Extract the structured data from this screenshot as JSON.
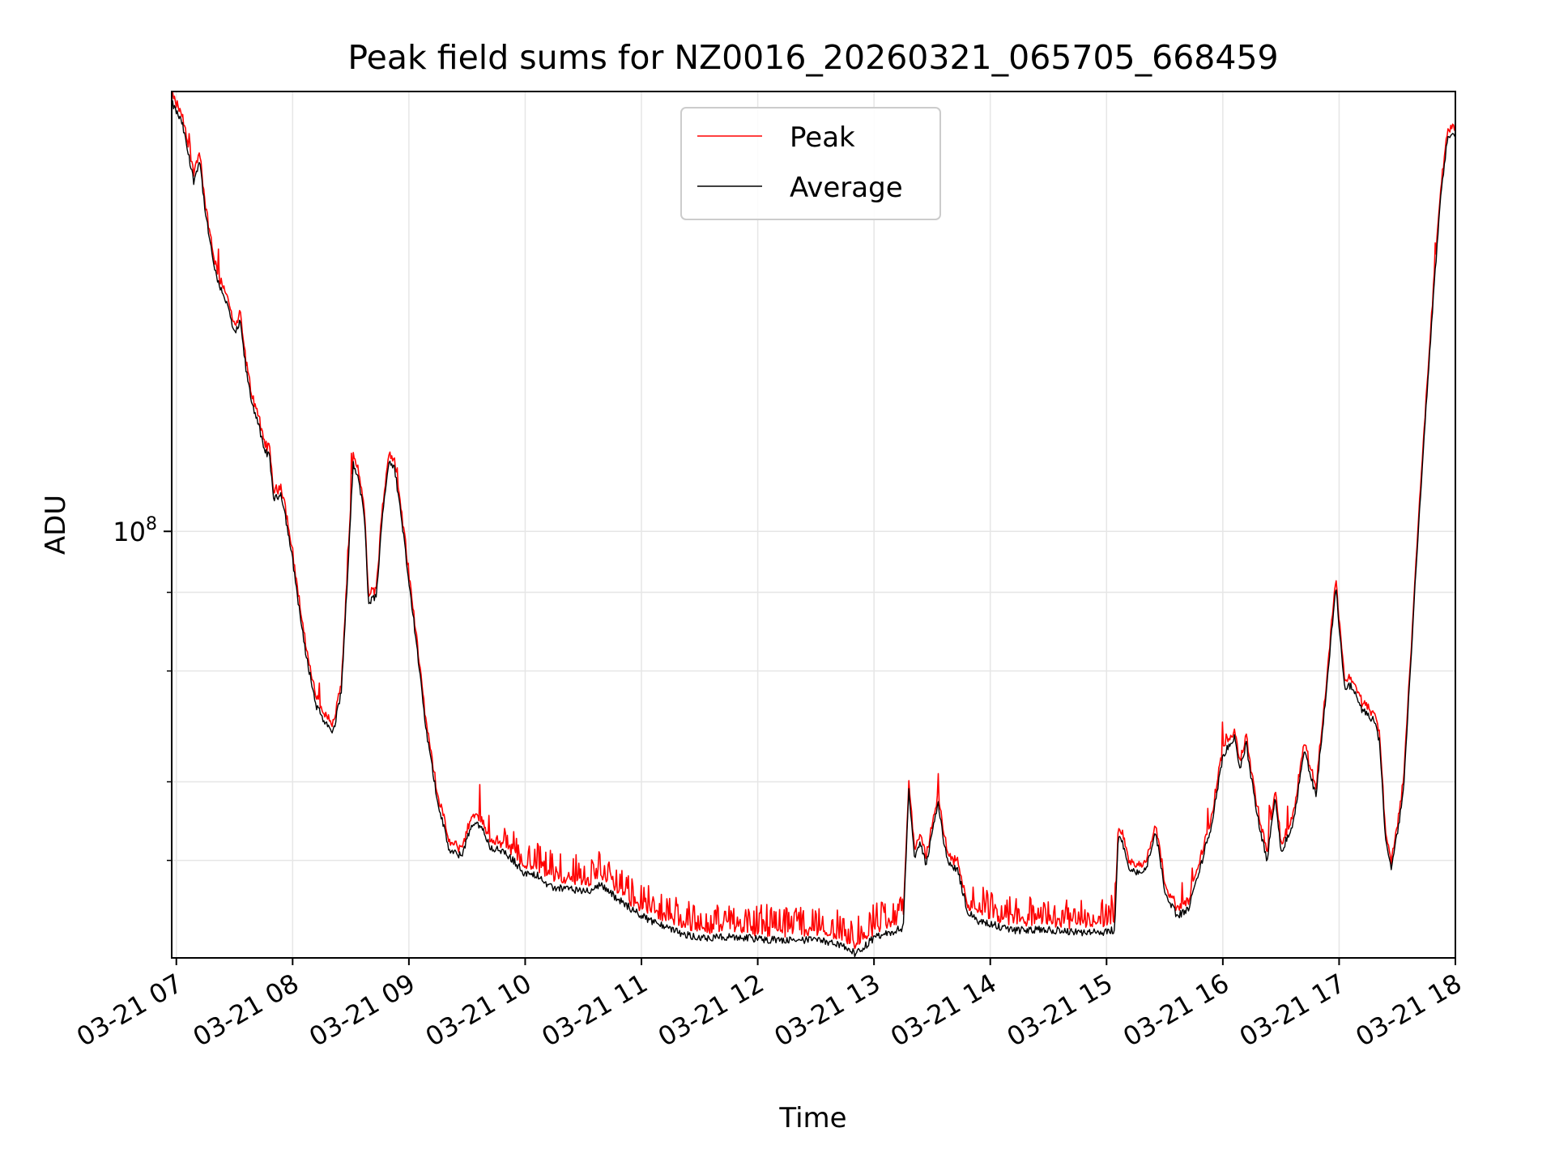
{
  "chart_data": {
    "type": "line",
    "title": "Peak field sums for NZ0016_20260321_065705_668459",
    "xlabel": "Time",
    "ylabel": "ADU",
    "yscale": "log",
    "ylim": [
      21000000,
      500000000
    ],
    "xlim_hours": [
      6.96,
      18.0
    ],
    "grid": true,
    "legend_position": "upper center",
    "x_ticks": [
      {
        "hour": 7,
        "label": "03-21 07"
      },
      {
        "hour": 8,
        "label": "03-21 08"
      },
      {
        "hour": 9,
        "label": "03-21 09"
      },
      {
        "hour": 10,
        "label": "03-21 10"
      },
      {
        "hour": 11,
        "label": "03-21 11"
      },
      {
        "hour": 12,
        "label": "03-21 12"
      },
      {
        "hour": 13,
        "label": "03-21 13"
      },
      {
        "hour": 14,
        "label": "03-21 14"
      },
      {
        "hour": 15,
        "label": "03-21 15"
      },
      {
        "hour": 16,
        "label": "03-21 16"
      },
      {
        "hour": 17,
        "label": "03-21 17"
      },
      {
        "hour": 18,
        "label": "03-21 18"
      }
    ],
    "y_major_ticks": [
      {
        "value": 100000000,
        "base": "10",
        "exp": "8"
      }
    ],
    "y_minor_ticks": [
      30000000,
      40000000,
      60000000,
      80000000
    ],
    "series": [
      {
        "name": "Peak",
        "color": "#ff0000"
      },
      {
        "name": "Average",
        "color": "#000000"
      }
    ],
    "average_points": [
      [
        6.96,
        480000000
      ],
      [
        7.05,
        445000000
      ],
      [
        7.1,
        400000000
      ],
      [
        7.15,
        360000000
      ],
      [
        7.2,
        390000000
      ],
      [
        7.25,
        320000000
      ],
      [
        7.3,
        280000000
      ],
      [
        7.35,
        250000000
      ],
      [
        7.4,
        240000000
      ],
      [
        7.45,
        225000000
      ],
      [
        7.5,
        205000000
      ],
      [
        7.55,
        215000000
      ],
      [
        7.6,
        180000000
      ],
      [
        7.65,
        160000000
      ],
      [
        7.7,
        150000000
      ],
      [
        7.75,
        135000000
      ],
      [
        7.8,
        132000000
      ],
      [
        7.84,
        112000000
      ],
      [
        7.9,
        115000000
      ],
      [
        7.93,
        108000000
      ],
      [
        8.0,
        90000000
      ],
      [
        8.1,
        66000000
      ],
      [
        8.2,
        53000000
      ],
      [
        8.3,
        49000000
      ],
      [
        8.35,
        48000000
      ],
      [
        8.42,
        56000000
      ],
      [
        8.48,
        90000000
      ],
      [
        8.52,
        128000000
      ],
      [
        8.57,
        120000000
      ],
      [
        8.62,
        105000000
      ],
      [
        8.65,
        77000000
      ],
      [
        8.72,
        79000000
      ],
      [
        8.78,
        110000000
      ],
      [
        8.83,
        130000000
      ],
      [
        8.88,
        125000000
      ],
      [
        8.95,
        100000000
      ],
      [
        9.05,
        70000000
      ],
      [
        9.15,
        48000000
      ],
      [
        9.25,
        37000000
      ],
      [
        9.35,
        31000000
      ],
      [
        9.45,
        30500000
      ],
      [
        9.55,
        34500000
      ],
      [
        9.62,
        34000000
      ],
      [
        9.7,
        31500000
      ],
      [
        9.8,
        31000000
      ],
      [
        9.9,
        30000000
      ],
      [
        10.0,
        28500000
      ],
      [
        10.1,
        28500000
      ],
      [
        10.2,
        27200000
      ],
      [
        10.4,
        27000000
      ],
      [
        10.55,
        26800000
      ],
      [
        10.65,
        27500000
      ],
      [
        10.8,
        26000000
      ],
      [
        11.0,
        24500000
      ],
      [
        11.2,
        23500000
      ],
      [
        11.4,
        22800000
      ],
      [
        11.6,
        22600000
      ],
      [
        11.8,
        22700000
      ],
      [
        12.0,
        22500000
      ],
      [
        12.2,
        22400000
      ],
      [
        12.4,
        22400000
      ],
      [
        12.6,
        22300000
      ],
      [
        12.75,
        21800000
      ],
      [
        12.85,
        21300000
      ],
      [
        13.0,
        22600000
      ],
      [
        13.15,
        23000000
      ],
      [
        13.25,
        23500000
      ],
      [
        13.3,
        39000000
      ],
      [
        13.35,
        30000000
      ],
      [
        13.4,
        32000000
      ],
      [
        13.45,
        29500000
      ],
      [
        13.5,
        33500000
      ],
      [
        13.55,
        37000000
      ],
      [
        13.6,
        32000000
      ],
      [
        13.65,
        29500000
      ],
      [
        13.72,
        29000000
      ],
      [
        13.8,
        25000000
      ],
      [
        13.9,
        24000000
      ],
      [
        14.0,
        23800000
      ],
      [
        14.2,
        23200000
      ],
      [
        14.4,
        23300000
      ],
      [
        14.6,
        23200000
      ],
      [
        14.8,
        23000000
      ],
      [
        15.0,
        23100000
      ],
      [
        15.07,
        23300000
      ],
      [
        15.1,
        33000000
      ],
      [
        15.15,
        31500000
      ],
      [
        15.2,
        29000000
      ],
      [
        15.3,
        28500000
      ],
      [
        15.35,
        29500000
      ],
      [
        15.42,
        33500000
      ],
      [
        15.5,
        27000000
      ],
      [
        15.6,
        24500000
      ],
      [
        15.7,
        25000000
      ],
      [
        15.8,
        29000000
      ],
      [
        15.9,
        34000000
      ],
      [
        16.0,
        44000000
      ],
      [
        16.1,
        47000000
      ],
      [
        16.15,
        42000000
      ],
      [
        16.2,
        46000000
      ],
      [
        16.3,
        35000000
      ],
      [
        16.38,
        30000000
      ],
      [
        16.45,
        38000000
      ],
      [
        16.5,
        31000000
      ],
      [
        16.6,
        34000000
      ],
      [
        16.7,
        45000000
      ],
      [
        16.8,
        38000000
      ],
      [
        16.9,
        58000000
      ],
      [
        16.97,
        82000000
      ],
      [
        17.05,
        56000000
      ],
      [
        17.1,
        57000000
      ],
      [
        17.2,
        52000000
      ],
      [
        17.3,
        50000000
      ],
      [
        17.35,
        46000000
      ],
      [
        17.4,
        32000000
      ],
      [
        17.45,
        29000000
      ],
      [
        17.55,
        38000000
      ],
      [
        17.65,
        80000000
      ],
      [
        17.75,
        160000000
      ],
      [
        17.82,
        250000000
      ],
      [
        17.88,
        350000000
      ],
      [
        17.93,
        420000000
      ],
      [
        17.98,
        430000000
      ],
      [
        18.0,
        420000000
      ]
    ]
  }
}
